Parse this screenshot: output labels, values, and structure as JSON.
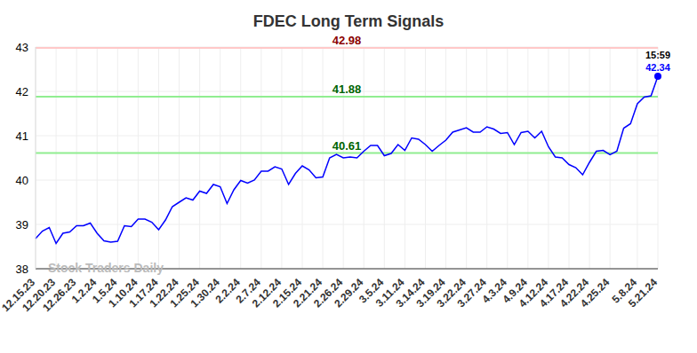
{
  "chart_data": {
    "type": "line",
    "title": "FDEC Long Term Signals",
    "watermark": "Stock Traders Daily",
    "annotations": [
      "15:59"
    ],
    "categories": [
      "12.15.23",
      null,
      null,
      "12.20.23",
      null,
      null,
      "12.26.23",
      null,
      null,
      "1.2.24",
      null,
      null,
      "1.5.24",
      null,
      null,
      "1.10.24",
      null,
      null,
      "1.17.24",
      null,
      null,
      "1.22.24",
      null,
      null,
      "1.25.24",
      null,
      null,
      "1.30.24",
      null,
      null,
      "2.2.24",
      null,
      null,
      "2.7.24",
      null,
      null,
      "2.12.24",
      null,
      null,
      "2.15.24",
      null,
      null,
      "2.21.24",
      null,
      null,
      "2.26.24",
      null,
      null,
      "2.29.24",
      null,
      null,
      "3.5.24",
      null,
      null,
      "3.11.24",
      null,
      null,
      "3.14.24",
      null,
      null,
      "3.19.24",
      null,
      null,
      "3.22.24",
      null,
      null,
      "3.27.24",
      null,
      null,
      "4.3.24",
      null,
      null,
      "4.9.24",
      null,
      null,
      "4.12.24",
      null,
      null,
      "4.17.24",
      null,
      null,
      "4.22.24",
      null,
      null,
      "4.25.24",
      null,
      null,
      null,
      "5.8.24",
      null,
      null,
      "5.21.24"
    ],
    "values": [
      38.68,
      38.85,
      38.93,
      38.57,
      38.8,
      38.83,
      38.97,
      38.97,
      39.03,
      38.8,
      38.63,
      38.6,
      38.62,
      38.97,
      38.95,
      39.12,
      39.12,
      39.05,
      38.88,
      39.1,
      39.4,
      39.5,
      39.6,
      39.55,
      39.75,
      39.7,
      39.9,
      39.85,
      39.47,
      39.78,
      39.99,
      39.93,
      40.0,
      40.2,
      40.2,
      40.3,
      40.25,
      39.9,
      40.15,
      40.32,
      40.23,
      40.05,
      40.07,
      40.5,
      40.58,
      40.5,
      40.52,
      40.5,
      40.65,
      40.78,
      40.78,
      40.55,
      40.6,
      40.8,
      40.67,
      40.95,
      40.92,
      40.8,
      40.65,
      40.78,
      40.9,
      41.08,
      41.13,
      41.18,
      41.08,
      41.08,
      41.2,
      41.15,
      41.05,
      41.07,
      40.8,
      41.07,
      41.1,
      40.95,
      41.1,
      40.75,
      40.52,
      40.5,
      40.35,
      40.28,
      40.12,
      40.4,
      40.65,
      40.67,
      40.57,
      40.65,
      41.17,
      41.27,
      41.72,
      41.87,
      41.9,
      42.34
    ],
    "color": "#0000ff",
    "marker": "none",
    "reference_lines": [
      {
        "value": 42.98,
        "color": "#ffc8c8"
      },
      {
        "value": 41.88,
        "color": "#90ee90"
      },
      {
        "value": 40.61,
        "color": "#90ee90"
      }
    ],
    "ylim": [
      38,
      43
    ],
    "yticks": [
      38,
      39,
      40,
      41,
      42,
      43
    ],
    "grid": true
  }
}
